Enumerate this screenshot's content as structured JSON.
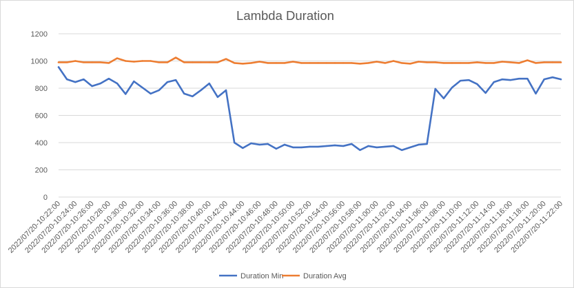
{
  "chart_data": {
    "type": "line",
    "title": "Lambda Duration",
    "xlabel": "",
    "ylabel": "",
    "ylim": [
      0,
      1200
    ],
    "yticks": [
      0,
      200,
      400,
      600,
      800,
      1000,
      1200
    ],
    "grid": true,
    "legend_position": "bottom",
    "x": [
      "2022/07/20-10:22:00",
      "2022/07/20-10:23:00",
      "2022/07/20-10:24:00",
      "2022/07/20-10:25:00",
      "2022/07/20-10:26:00",
      "2022/07/20-10:27:00",
      "2022/07/20-10:28:00",
      "2022/07/20-10:29:00",
      "2022/07/20-10:30:00",
      "2022/07/20-10:31:00",
      "2022/07/20-10:32:00",
      "2022/07/20-10:33:00",
      "2022/07/20-10:34:00",
      "2022/07/20-10:35:00",
      "2022/07/20-10:36:00",
      "2022/07/20-10:37:00",
      "2022/07/20-10:38:00",
      "2022/07/20-10:39:00",
      "2022/07/20-10:40:00",
      "2022/07/20-10:41:00",
      "2022/07/20-10:42:00",
      "2022/07/20-10:43:00",
      "2022/07/20-10:44:00",
      "2022/07/20-10:45:00",
      "2022/07/20-10:46:00",
      "2022/07/20-10:47:00",
      "2022/07/20-10:48:00",
      "2022/07/20-10:49:00",
      "2022/07/20-10:50:00",
      "2022/07/20-10:51:00",
      "2022/07/20-10:52:00",
      "2022/07/20-10:53:00",
      "2022/07/20-10:54:00",
      "2022/07/20-10:55:00",
      "2022/07/20-10:56:00",
      "2022/07/20-10:57:00",
      "2022/07/20-10:58:00",
      "2022/07/20-10:59:00",
      "2022/07/20-11:00:00",
      "2022/07/20-11:01:00",
      "2022/07/20-11:02:00",
      "2022/07/20-11:03:00",
      "2022/07/20-11:04:00",
      "2022/07/20-11:05:00",
      "2022/07/20-11:06:00",
      "2022/07/20-11:07:00",
      "2022/07/20-11:08:00",
      "2022/07/20-11:09:00",
      "2022/07/20-11:10:00",
      "2022/07/20-11:11:00",
      "2022/07/20-11:12:00",
      "2022/07/20-11:13:00",
      "2022/07/20-11:14:00",
      "2022/07/20-11:15:00",
      "2022/07/20-11:16:00",
      "2022/07/20-11:17:00",
      "2022/07/20-11:18:00",
      "2022/07/20-11:19:00",
      "2022/07/20-11:20:00",
      "2022/07/20-11:21:00",
      "2022/07/20-11:22:00"
    ],
    "tick_labels": [
      "2022/07/20-10:22:00",
      "2022/07/20-10:24:00",
      "2022/07/20-10:26:00",
      "2022/07/20-10:28:00",
      "2022/07/20-10:30:00",
      "2022/07/20-10:32:00",
      "2022/07/20-10:34:00",
      "2022/07/20-10:36:00",
      "2022/07/20-10:38:00",
      "2022/07/20-10:40:00",
      "2022/07/20-10:42:00",
      "2022/07/20-10:44:00",
      "2022/07/20-10:46:00",
      "2022/07/20-10:48:00",
      "2022/07/20-10:50:00",
      "2022/07/20-10:52:00",
      "2022/07/20-10:54:00",
      "2022/07/20-10:56:00",
      "2022/07/20-10:58:00",
      "2022/07/20-11:00:00",
      "2022/07/20-11:02:00",
      "2022/07/20-11:04:00",
      "2022/07/20-11:06:00",
      "2022/07/20-11:08:00",
      "2022/07/20-11:10:00",
      "2022/07/20-11:12:00",
      "2022/07/20-11:14:00",
      "2022/07/20-11:16:00",
      "2022/07/20-11:18:00",
      "2022/07/20-11:20:00",
      "2022/07/20-11:22:00"
    ],
    "series": [
      {
        "name": "Duration Min",
        "color": "#4472C4",
        "values": [
          955,
          865,
          845,
          865,
          815,
          835,
          870,
          835,
          757,
          850,
          805,
          760,
          785,
          845,
          860,
          760,
          740,
          785,
          835,
          735,
          785,
          400,
          360,
          395,
          385,
          390,
          355,
          385,
          365,
          365,
          370,
          370,
          375,
          380,
          375,
          390,
          345,
          375,
          365,
          370,
          375,
          345,
          365,
          385,
          390,
          795,
          725,
          805,
          855,
          860,
          830,
          765,
          845,
          865,
          860,
          870,
          870,
          760,
          865,
          880,
          865
        ]
      },
      {
        "name": "Duration Avg",
        "color": "#ED7D31",
        "values": [
          990,
          990,
          1000,
          990,
          990,
          990,
          985,
          1020,
          1000,
          995,
          1000,
          1000,
          990,
          990,
          1025,
          990,
          990,
          990,
          990,
          990,
          1015,
          985,
          980,
          985,
          995,
          985,
          985,
          985,
          995,
          985,
          985,
          985,
          985,
          985,
          985,
          985,
          980,
          985,
          995,
          985,
          1000,
          985,
          980,
          995,
          990,
          990,
          985,
          985,
          985,
          985,
          990,
          985,
          985,
          995,
          990,
          985,
          1005,
          985,
          990,
          990,
          990
        ]
      }
    ]
  }
}
